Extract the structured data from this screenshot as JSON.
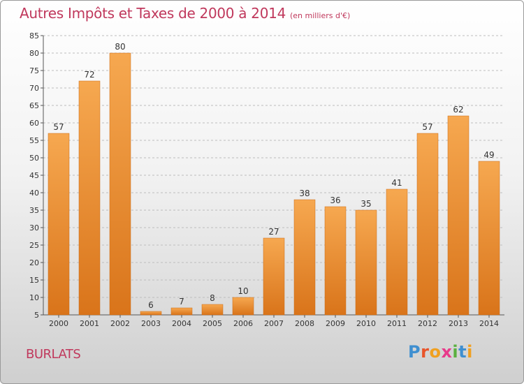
{
  "header": {
    "title": "Autres Impôts et Taxes de 2000 à 2014",
    "subtitle": "(en milliers d'€)"
  },
  "commune": "BURLATS",
  "brand": {
    "name": "Proxiti",
    "letters": [
      {
        "char": "P",
        "color": "#3f8fd0"
      },
      {
        "char": "r",
        "color": "#e8542a"
      },
      {
        "char": "o",
        "color": "#f0a020"
      },
      {
        "char": "x",
        "color": "#e83a8a"
      },
      {
        "char": "i",
        "color": "#5ab040"
      },
      {
        "char": "t",
        "color": "#3f8fd0"
      },
      {
        "char": "i",
        "color": "#f0a020"
      }
    ]
  },
  "chart_data": {
    "type": "bar",
    "title": "Autres Impôts et Taxes de 2000 à 2014",
    "subtitle": "(en milliers d'€)",
    "categories": [
      "2000",
      "2001",
      "2002",
      "2003",
      "2004",
      "2005",
      "2006",
      "2007",
      "2008",
      "2009",
      "2010",
      "2011",
      "2012",
      "2013",
      "2014"
    ],
    "values": [
      57,
      72,
      80,
      6,
      7,
      8,
      10,
      27,
      38,
      36,
      35,
      41,
      57,
      62,
      49
    ],
    "ylim": [
      5,
      85
    ],
    "yticks": [
      5,
      10,
      15,
      20,
      25,
      30,
      35,
      40,
      45,
      50,
      55,
      60,
      65,
      70,
      75,
      80,
      85
    ],
    "grid": true,
    "bar_color": "#f0922e",
    "bar_color_light": "#f6a850",
    "bar_color_dark": "#d9741a"
  }
}
